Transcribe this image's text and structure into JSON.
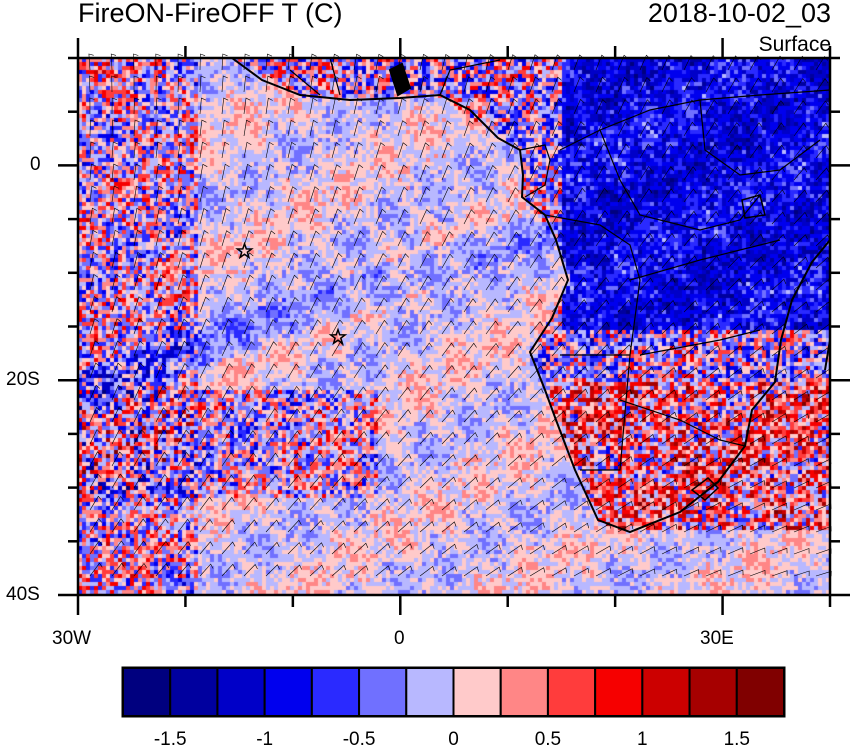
{
  "header": {
    "title": "FireON-FireOFF T (C)",
    "time": "2018-10-02_03",
    "level": "Surface"
  },
  "axes": {
    "x_labels": [
      "30W",
      "0",
      "30E"
    ],
    "y_labels": [
      "0",
      "20S",
      "40S"
    ],
    "lon_range": [
      -30,
      40
    ],
    "lat_range": [
      -40,
      10
    ]
  },
  "markers": [
    {
      "name": "star",
      "lon": -14.5,
      "lat": -8
    },
    {
      "name": "star",
      "lon": -5.8,
      "lat": -16
    }
  ],
  "colorbar": {
    "colors": [
      "#00007f",
      "#00009f",
      "#0000c8",
      "#0000ee",
      "#2a2aff",
      "#7070ff",
      "#b8b8ff",
      "#ffcaca",
      "#ff8686",
      "#ff3c3c",
      "#f60000",
      "#cc0000",
      "#a60000",
      "#800000"
    ],
    "levels": [
      -1.5,
      -1.25,
      -1,
      -0.75,
      -0.5,
      -0.25,
      0,
      0.25,
      0.5,
      0.75,
      1,
      1.25,
      1.5
    ],
    "labels": [
      "-1.5",
      "-1",
      "-0.5",
      "0",
      "0.5",
      "1",
      "1.5"
    ]
  }
}
